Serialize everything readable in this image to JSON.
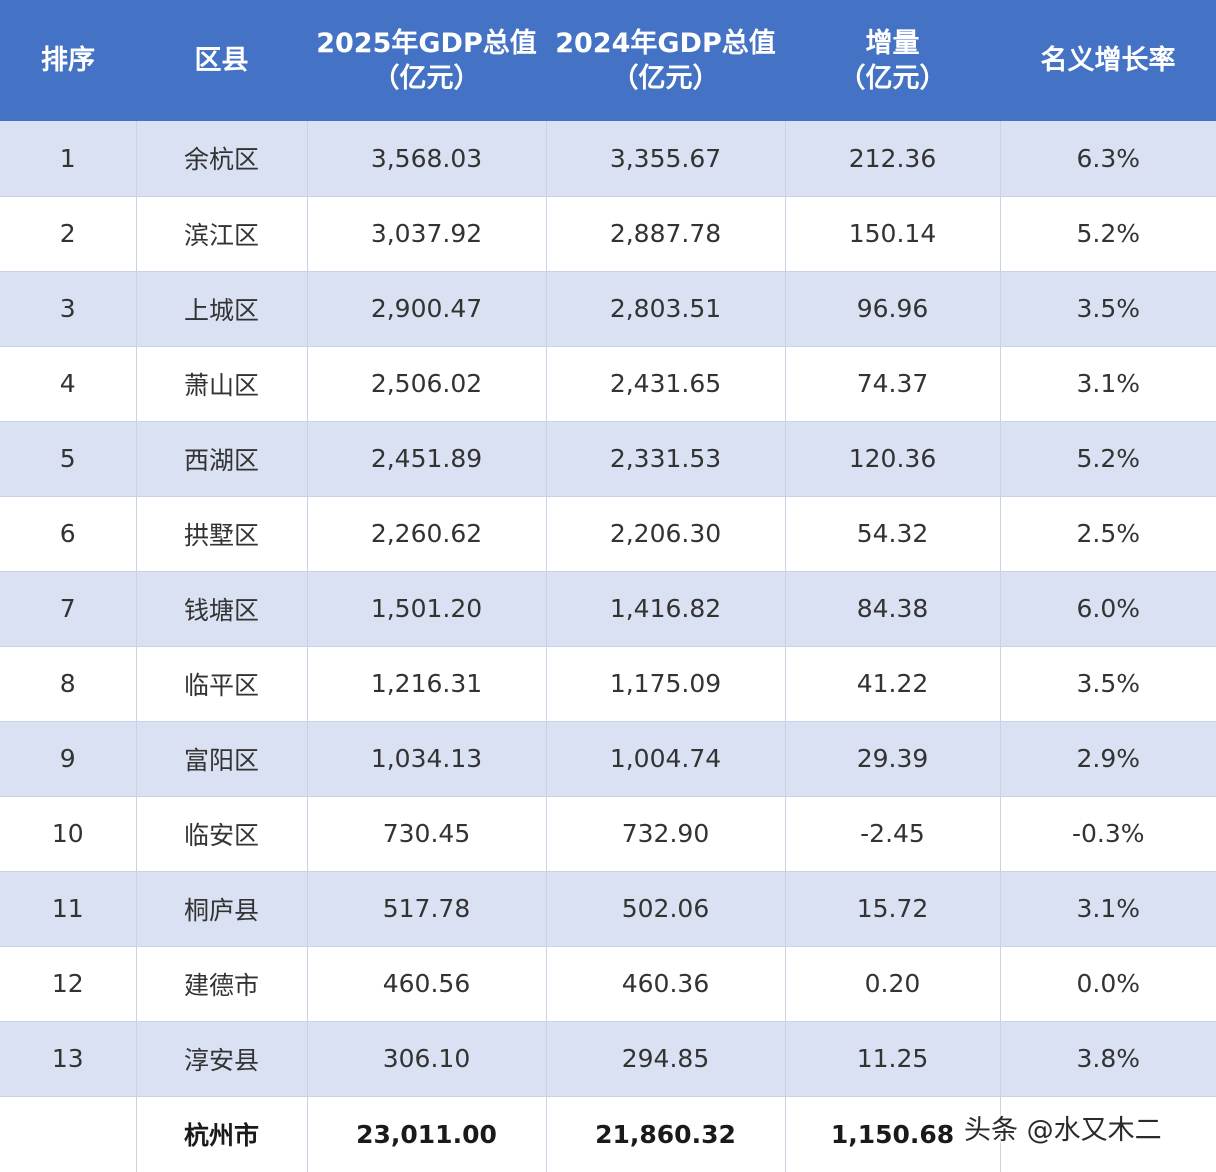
{
  "header": {
    "rank": "排序",
    "district": "区县",
    "gdp2025_line1": "2025年GDP总值",
    "gdp2025_line2": "（亿元）",
    "gdp2024_line1": "2024年GDP总值",
    "gdp2024_line2": "（亿元）",
    "increase_line1": "增量",
    "increase_line2": "（亿元）",
    "growth": "名义增长率"
  },
  "rows": [
    {
      "rank": "1",
      "district": "余杭区",
      "gdp2025": "3,568.03",
      "gdp2024": "3,355.67",
      "increase": "212.36",
      "growth": "6.3%"
    },
    {
      "rank": "2",
      "district": "滨江区",
      "gdp2025": "3,037.92",
      "gdp2024": "2,887.78",
      "increase": "150.14",
      "growth": "5.2%"
    },
    {
      "rank": "3",
      "district": "上城区",
      "gdp2025": "2,900.47",
      "gdp2024": "2,803.51",
      "increase": "96.96",
      "growth": "3.5%"
    },
    {
      "rank": "4",
      "district": "萧山区",
      "gdp2025": "2,506.02",
      "gdp2024": "2,431.65",
      "increase": "74.37",
      "growth": "3.1%"
    },
    {
      "rank": "5",
      "district": "西湖区",
      "gdp2025": "2,451.89",
      "gdp2024": "2,331.53",
      "increase": "120.36",
      "growth": "5.2%"
    },
    {
      "rank": "6",
      "district": "拱墅区",
      "gdp2025": "2,260.62",
      "gdp2024": "2,206.30",
      "increase": "54.32",
      "growth": "2.5%"
    },
    {
      "rank": "7",
      "district": "钱塘区",
      "gdp2025": "1,501.20",
      "gdp2024": "1,416.82",
      "increase": "84.38",
      "growth": "6.0%"
    },
    {
      "rank": "8",
      "district": "临平区",
      "gdp2025": "1,216.31",
      "gdp2024": "1,175.09",
      "increase": "41.22",
      "growth": "3.5%"
    },
    {
      "rank": "9",
      "district": "富阳区",
      "gdp2025": "1,034.13",
      "gdp2024": "1,004.74",
      "increase": "29.39",
      "growth": "2.9%"
    },
    {
      "rank": "10",
      "district": "临安区",
      "gdp2025": "730.45",
      "gdp2024": "732.90",
      "increase": "-2.45",
      "growth": "-0.3%"
    },
    {
      "rank": "11",
      "district": "桐庐县",
      "gdp2025": "517.78",
      "gdp2024": "502.06",
      "increase": "15.72",
      "growth": "3.1%"
    },
    {
      "rank": "12",
      "district": "建德市",
      "gdp2025": "460.56",
      "gdp2024": "460.36",
      "increase": "0.20",
      "growth": "0.0%"
    },
    {
      "rank": "13",
      "district": "淳安县",
      "gdp2025": "306.10",
      "gdp2024": "294.85",
      "increase": "11.25",
      "growth": "3.8%"
    }
  ],
  "total": {
    "rank": "",
    "district": "杭州市",
    "gdp2025": "23,011.00",
    "gdp2024": "21,860.32",
    "increase": "1,150.68",
    "growth": ""
  },
  "watermark": "头条 @水又木二",
  "colors": {
    "header_bg": "#4472c4",
    "header_text": "#ffffff",
    "band_row": "#d9e1f2",
    "plain_row": "#ffffff"
  }
}
